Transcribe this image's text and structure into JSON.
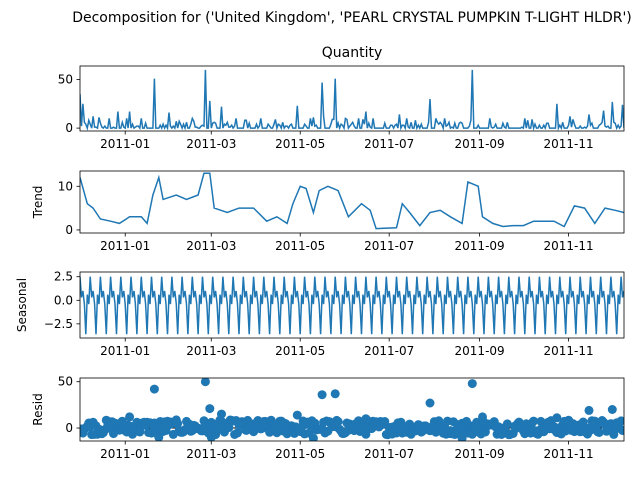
{
  "figure": {
    "suptitle": "Decomposition for ('United Kingdom', 'PEARL CRYSTAL PUMPKIN T-LIGHT HLDR')",
    "line_color": "#1f77b4"
  },
  "chart_data": [
    {
      "type": "line",
      "title": "Quantity",
      "ylabel": "",
      "x_range": [
        "2010-12-01",
        "2011-12-09"
      ],
      "ylim": [
        -3,
        64
      ],
      "yticks": [
        0,
        50
      ],
      "xticks": [
        "2011-01",
        "2011-03",
        "2011-05",
        "2011-07",
        "2011-09",
        "2011-11"
      ],
      "grid": false,
      "baseline": 0,
      "spikes": [
        [
          "2010-12-01",
          35
        ],
        [
          "2010-12-03",
          25
        ],
        [
          "2010-12-10",
          12
        ],
        [
          "2010-12-14",
          11
        ],
        [
          "2010-12-27",
          17
        ],
        [
          "2011-01-04",
          17
        ],
        [
          "2011-01-12",
          10
        ],
        [
          "2011-01-21",
          51
        ],
        [
          "2011-01-31",
          16
        ],
        [
          "2011-02-07",
          7
        ],
        [
          "2011-02-16",
          10
        ],
        [
          "2011-02-25",
          60
        ],
        [
          "2011-02-28",
          28
        ],
        [
          "2011-03-08",
          22
        ],
        [
          "2011-03-18",
          10
        ],
        [
          "2011-03-25",
          8
        ],
        [
          "2011-04-04",
          10
        ],
        [
          "2011-04-14",
          9
        ],
        [
          "2011-04-29",
          23
        ],
        [
          "2011-05-08",
          10
        ],
        [
          "2011-05-16",
          47
        ],
        [
          "2011-05-25",
          51
        ],
        [
          "2011-06-01",
          10
        ],
        [
          "2011-06-15",
          17
        ],
        [
          "2011-06-20",
          10
        ],
        [
          "2011-07-08",
          14
        ],
        [
          "2011-07-29",
          30
        ],
        [
          "2011-08-08",
          10
        ],
        [
          "2011-08-27",
          60
        ],
        [
          "2011-09-08",
          10
        ],
        [
          "2011-09-20",
          6
        ],
        [
          "2011-10-04",
          8
        ],
        [
          "2011-10-24",
          25
        ],
        [
          "2011-11-04",
          9
        ],
        [
          "2011-11-15",
          14
        ],
        [
          "2011-11-25",
          18
        ],
        [
          "2011-12-01",
          27
        ],
        [
          "2011-12-08",
          24
        ]
      ]
    },
    {
      "type": "line",
      "title": "",
      "ylabel": "Trend",
      "x_range": [
        "2010-12-01",
        "2011-12-09"
      ],
      "ylim": [
        -0.7,
        13.5
      ],
      "yticks": [
        0,
        10
      ],
      "xticks": [
        "2011-01",
        "2011-03",
        "2011-05",
        "2011-07",
        "2011-09",
        "2011-11"
      ],
      "grid": false,
      "points": [
        [
          "2010-12-01",
          12
        ],
        [
          "2010-12-06",
          6
        ],
        [
          "2010-12-10",
          5
        ],
        [
          "2010-12-15",
          2.5
        ],
        [
          "2010-12-22",
          2
        ],
        [
          "2010-12-28",
          1.5
        ],
        [
          "2011-01-04",
          3
        ],
        [
          "2011-01-12",
          3
        ],
        [
          "2011-01-16",
          1.5
        ],
        [
          "2011-01-20",
          8
        ],
        [
          "2011-01-24",
          12
        ],
        [
          "2011-01-27",
          7
        ],
        [
          "2011-02-05",
          8
        ],
        [
          "2011-02-12",
          7
        ],
        [
          "2011-02-20",
          8
        ],
        [
          "2011-02-24",
          13
        ],
        [
          "2011-02-28",
          13
        ],
        [
          "2011-03-03",
          5
        ],
        [
          "2011-03-12",
          4
        ],
        [
          "2011-03-20",
          5
        ],
        [
          "2011-03-30",
          5
        ],
        [
          "2011-04-08",
          2
        ],
        [
          "2011-04-15",
          3
        ],
        [
          "2011-04-22",
          1.5
        ],
        [
          "2011-04-26",
          6
        ],
        [
          "2011-05-01",
          10
        ],
        [
          "2011-05-05",
          9.5
        ],
        [
          "2011-05-10",
          4
        ],
        [
          "2011-05-14",
          9
        ],
        [
          "2011-05-20",
          10
        ],
        [
          "2011-05-27",
          9
        ],
        [
          "2011-06-03",
          3
        ],
        [
          "2011-06-12",
          6
        ],
        [
          "2011-06-18",
          4.5
        ],
        [
          "2011-06-22",
          0.3
        ],
        [
          "2011-07-06",
          0.5
        ],
        [
          "2011-07-10",
          6
        ],
        [
          "2011-07-15",
          4
        ],
        [
          "2011-07-22",
          1
        ],
        [
          "2011-07-29",
          4
        ],
        [
          "2011-08-05",
          4.5
        ],
        [
          "2011-08-12",
          3
        ],
        [
          "2011-08-20",
          1.5
        ],
        [
          "2011-08-24",
          11
        ],
        [
          "2011-08-31",
          10
        ],
        [
          "2011-09-03",
          3
        ],
        [
          "2011-09-10",
          1.5
        ],
        [
          "2011-09-17",
          0.8
        ],
        [
          "2011-09-24",
          1
        ],
        [
          "2011-10-01",
          1
        ],
        [
          "2011-10-08",
          2
        ],
        [
          "2011-10-15",
          2
        ],
        [
          "2011-10-22",
          2
        ],
        [
          "2011-10-29",
          0.8
        ],
        [
          "2011-11-05",
          5.5
        ],
        [
          "2011-11-12",
          5
        ],
        [
          "2011-11-19",
          1.5
        ],
        [
          "2011-11-26",
          5
        ],
        [
          "2011-12-03",
          4.5
        ],
        [
          "2011-12-09",
          4
        ]
      ]
    },
    {
      "type": "line",
      "title": "",
      "ylabel": "Seasonal",
      "x_range": [
        "2010-12-01",
        "2011-12-09"
      ],
      "ylim": [
        -4,
        3
      ],
      "yticks": [
        2.5,
        0.0,
        -2.5
      ],
      "ytick_labels": [
        "2.5",
        "0.0",
        "−2.5"
      ],
      "xticks": [
        "2011-01",
        "2011-03",
        "2011-05",
        "2011-07",
        "2011-09",
        "2011-11"
      ],
      "grid": false,
      "period_days": 7,
      "weekly_pattern": [
        2.5,
        0.3,
        1.0,
        -0.4,
        -3.6,
        0.6,
        -0.4
      ]
    },
    {
      "type": "scatter",
      "title": "",
      "ylabel": "Resid",
      "x_range": [
        "2010-12-01",
        "2011-12-09"
      ],
      "ylim": [
        -14,
        54
      ],
      "yticks": [
        0,
        50
      ],
      "xticks": [
        "2011-01",
        "2011-03",
        "2011-05",
        "2011-07",
        "2011-09",
        "2011-11"
      ],
      "grid": false,
      "baseline": 0,
      "point_color": "#1f77b4",
      "outliers": [
        [
          "2011-01-21",
          42
        ],
        [
          "2011-02-25",
          50
        ],
        [
          "2011-02-28",
          21
        ],
        [
          "2011-03-08",
          15
        ],
        [
          "2011-05-16",
          36
        ],
        [
          "2011-05-25",
          37
        ],
        [
          "2011-07-29",
          27
        ],
        [
          "2011-08-27",
          48
        ],
        [
          "2011-09-03",
          12
        ],
        [
          "2011-11-15",
          19
        ],
        [
          "2011-12-01",
          20
        ],
        [
          "2011-01-04",
          12
        ],
        [
          "2011-04-29",
          14
        ],
        [
          "2011-06-15",
          10
        ],
        [
          "2011-10-24",
          11
        ],
        [
          "2011-08-20",
          -11
        ],
        [
          "2011-05-10",
          -11
        ],
        [
          "2011-01-24",
          -10
        ],
        [
          "2011-03-01",
          -10
        ]
      ]
    }
  ]
}
